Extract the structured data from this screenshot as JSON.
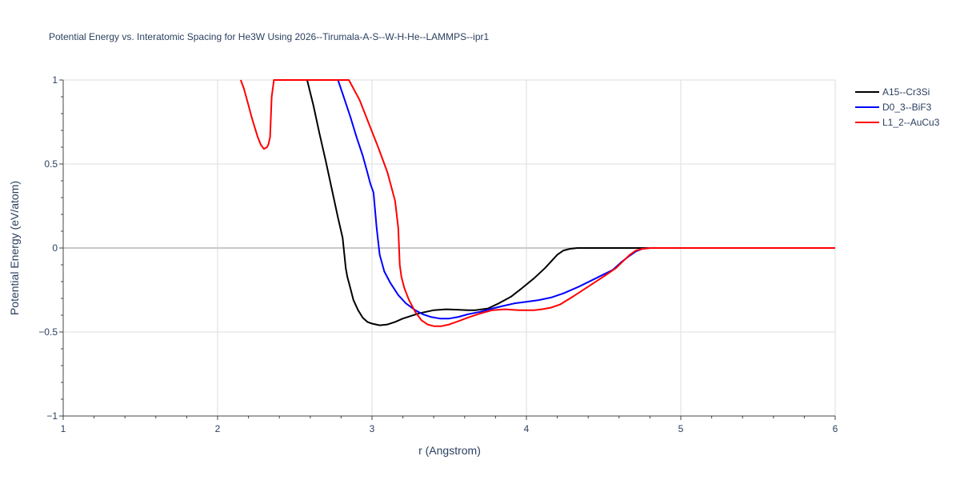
{
  "chart_data": {
    "type": "line",
    "title": "Potential Energy vs. Interatomic Spacing for He3W Using 2026--Tirumala-A-S--W-H-He--LAMMPS--ipr1",
    "xlabel": "r (Angstrom)",
    "ylabel": "Potential Energy (eV/atom)",
    "xlim": [
      1,
      6
    ],
    "ylim": [
      -1,
      1
    ],
    "xticks": [
      1,
      2,
      3,
      4,
      5,
      6
    ],
    "yticks": [
      -1,
      -0.5,
      0,
      0.5,
      1
    ],
    "xtick_labels": [
      "1",
      "2",
      "3",
      "4",
      "5",
      "6"
    ],
    "ytick_labels": [
      "−1",
      "−0.5",
      "0",
      "0.5",
      "1"
    ],
    "grid": true,
    "legend_position": "top-right",
    "series": [
      {
        "name": "A15--Cr3Si",
        "color": "#000000",
        "x": [
          2.58,
          2.62,
          2.66,
          2.7,
          2.74,
          2.78,
          2.81,
          2.83,
          2.84,
          2.86,
          2.88,
          2.91,
          2.94,
          2.97,
          3.0,
          3.05,
          3.1,
          3.15,
          3.2,
          3.25,
          3.3,
          3.35,
          3.4,
          3.48,
          3.55,
          3.62,
          3.67,
          3.75,
          3.82,
          3.9,
          3.97,
          4.05,
          4.12,
          4.16,
          4.2,
          4.24,
          4.28,
          4.33,
          4.4,
          4.5,
          4.6,
          4.7,
          4.8,
          5.0,
          6.0
        ],
        "y": [
          1.0,
          0.85,
          0.68,
          0.52,
          0.35,
          0.18,
          0.06,
          -0.12,
          -0.17,
          -0.24,
          -0.31,
          -0.37,
          -0.415,
          -0.44,
          -0.45,
          -0.46,
          -0.455,
          -0.44,
          -0.42,
          -0.405,
          -0.39,
          -0.38,
          -0.37,
          -0.365,
          -0.367,
          -0.37,
          -0.37,
          -0.36,
          -0.33,
          -0.29,
          -0.24,
          -0.18,
          -0.12,
          -0.08,
          -0.04,
          -0.015,
          -0.005,
          0.0,
          0.0,
          0.0,
          0.0,
          0.0,
          0.0,
          0.0,
          0.0
        ]
      },
      {
        "name": "D0_3--BiF3",
        "color": "#0000ff",
        "x": [
          2.78,
          2.82,
          2.86,
          2.9,
          2.94,
          2.97,
          2.99,
          3.01,
          3.03,
          3.05,
          3.08,
          3.12,
          3.17,
          3.22,
          3.28,
          3.33,
          3.38,
          3.44,
          3.5,
          3.56,
          3.62,
          3.7,
          3.78,
          3.85,
          3.92,
          4.0,
          4.08,
          4.16,
          4.24,
          4.34,
          4.45,
          4.56,
          4.62,
          4.67,
          4.71,
          4.75,
          4.8,
          4.9,
          5.0,
          6.0
        ],
        "y": [
          1.0,
          0.89,
          0.78,
          0.66,
          0.55,
          0.45,
          0.38,
          0.33,
          0.12,
          -0.04,
          -0.14,
          -0.21,
          -0.28,
          -0.33,
          -0.37,
          -0.395,
          -0.41,
          -0.42,
          -0.42,
          -0.41,
          -0.395,
          -0.38,
          -0.36,
          -0.345,
          -0.33,
          -0.32,
          -0.31,
          -0.295,
          -0.27,
          -0.23,
          -0.18,
          -0.13,
          -0.08,
          -0.045,
          -0.02,
          -0.005,
          0.0,
          0.0,
          0.0,
          0.0
        ]
      },
      {
        "name": "L1_2--AuCu3",
        "color": "#ff0000",
        "x": [
          2.15,
          2.17,
          2.2,
          2.22,
          2.24,
          2.26,
          2.28,
          2.3,
          2.32,
          2.33,
          2.34,
          2.35,
          2.365,
          2.85,
          2.92,
          2.98,
          3.04,
          3.1,
          3.15,
          3.17,
          3.18,
          3.19,
          3.21,
          3.24,
          3.28,
          3.32,
          3.36,
          3.4,
          3.45,
          3.5,
          3.56,
          3.62,
          3.7,
          3.78,
          3.86,
          3.95,
          4.05,
          4.1,
          4.16,
          4.22,
          4.3,
          4.4,
          4.5,
          4.58,
          4.63,
          4.67,
          4.71,
          4.75,
          4.8,
          5.0,
          6.0
        ],
        "y": [
          1.0,
          0.95,
          0.85,
          0.78,
          0.72,
          0.66,
          0.615,
          0.59,
          0.6,
          0.62,
          0.66,
          0.9,
          1.0,
          1.0,
          0.88,
          0.74,
          0.6,
          0.45,
          0.28,
          0.12,
          -0.1,
          -0.17,
          -0.24,
          -0.31,
          -0.38,
          -0.43,
          -0.455,
          -0.465,
          -0.465,
          -0.455,
          -0.435,
          -0.415,
          -0.39,
          -0.37,
          -0.365,
          -0.37,
          -0.37,
          -0.365,
          -0.355,
          -0.335,
          -0.29,
          -0.23,
          -0.17,
          -0.12,
          -0.075,
          -0.04,
          -0.015,
          -0.005,
          0.0,
          0.0,
          0.0
        ]
      }
    ]
  }
}
